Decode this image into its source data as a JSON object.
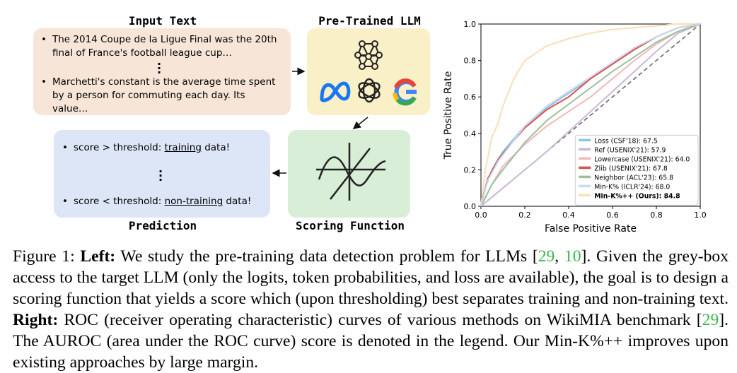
{
  "figure": {
    "input_text": {
      "heading": "Input Text",
      "bullet1_line1": "The 2014 Coupe de la Ligue Final was the 20th",
      "bullet1_line2": "final of France's football league cup…",
      "bullet2_line1": "Marchetti's constant is the average time spent",
      "bullet2_line2": "by a person for commuting each day. Its",
      "bullet2_line3": "value…"
    },
    "llm": {
      "heading": "Pre-Trained LLM"
    },
    "prediction": {
      "heading": "Prediction",
      "line1_prefix": "score > threshold: ",
      "line1_word": "training",
      "line1_suffix": " data!",
      "line2_prefix": "score < threshold: ",
      "line2_word": "non-training",
      "line2_suffix": " data!"
    },
    "scoring": {
      "heading": "Scoring Function"
    },
    "colors": {
      "input_box": "#f7e6d8",
      "llm_box": "#faf0c7",
      "prediction_box": "#dce6f7",
      "scoring_box": "#d8eed6"
    }
  },
  "chart_data": {
    "type": "line",
    "xlabel": "False Positive Rate",
    "ylabel": "True Positive Rate",
    "xlim": [
      0,
      1
    ],
    "ylim": [
      0,
      1
    ],
    "x_ticks": [
      "0.0",
      "0.2",
      "0.4",
      "0.6",
      "0.8",
      "1.0"
    ],
    "y_ticks": [
      "0.0",
      "0.2",
      "0.4",
      "0.6",
      "0.8",
      "1.0"
    ],
    "grid": false,
    "legend_position": "lower-right",
    "diagonal_reference": true,
    "series": [
      {
        "name": "Loss (CSF'18): 67.5",
        "color": "#8ec3e8",
        "auroc": 67.5,
        "x": [
          0,
          0.02,
          0.05,
          0.1,
          0.15,
          0.2,
          0.3,
          0.4,
          0.5,
          0.6,
          0.7,
          0.8,
          0.9,
          1.0
        ],
        "y": [
          0,
          0.1,
          0.2,
          0.3,
          0.37,
          0.44,
          0.54,
          0.62,
          0.7,
          0.78,
          0.86,
          0.93,
          0.98,
          1.0
        ]
      },
      {
        "name": "Ref (USENIX'21): 57.9",
        "color": "#cbb6d8",
        "auroc": 57.9,
        "x": [
          0,
          0.05,
          0.1,
          0.2,
          0.3,
          0.4,
          0.5,
          0.6,
          0.7,
          0.8,
          0.9,
          1.0
        ],
        "y": [
          0,
          0.05,
          0.1,
          0.2,
          0.3,
          0.41,
          0.52,
          0.63,
          0.74,
          0.85,
          0.95,
          1.0
        ]
      },
      {
        "name": "Lowercase (USENIX'21): 64.0",
        "color": "#f0b9b9",
        "auroc": 64.0,
        "x": [
          0,
          0.05,
          0.1,
          0.2,
          0.3,
          0.4,
          0.5,
          0.6,
          0.7,
          0.8,
          0.9,
          1.0
        ],
        "y": [
          0,
          0.12,
          0.22,
          0.34,
          0.44,
          0.52,
          0.6,
          0.7,
          0.8,
          0.89,
          0.96,
          1.0
        ]
      },
      {
        "name": "Zlib (USENIX'21): 67.8",
        "color": "#d9534f",
        "auroc": 67.8,
        "x": [
          0,
          0.03,
          0.08,
          0.15,
          0.2,
          0.3,
          0.4,
          0.5,
          0.6,
          0.7,
          0.8,
          0.9,
          1.0
        ],
        "y": [
          0,
          0.15,
          0.26,
          0.36,
          0.43,
          0.53,
          0.6,
          0.7,
          0.78,
          0.86,
          0.93,
          0.98,
          1.0
        ]
      },
      {
        "name": "Neighbor (ACL'23): 65.8",
        "color": "#9dbfa0",
        "auroc": 65.8,
        "x": [
          0,
          0.05,
          0.1,
          0.2,
          0.3,
          0.4,
          0.5,
          0.6,
          0.7,
          0.8,
          0.9,
          1.0
        ],
        "y": [
          0,
          0.12,
          0.2,
          0.35,
          0.47,
          0.56,
          0.65,
          0.74,
          0.82,
          0.9,
          0.96,
          1.0
        ]
      },
      {
        "name": "Min-K% (ICLR'24): 68.0",
        "color": "#c9daf0",
        "auroc": 68.0,
        "x": [
          0,
          0.03,
          0.08,
          0.15,
          0.2,
          0.3,
          0.4,
          0.5,
          0.6,
          0.7,
          0.8,
          0.9,
          1.0
        ],
        "y": [
          0,
          0.14,
          0.25,
          0.36,
          0.44,
          0.55,
          0.63,
          0.71,
          0.79,
          0.87,
          0.93,
          0.98,
          1.0
        ]
      },
      {
        "name": "Min-K%++ (Ours): 84.8",
        "color": "#fbe0bd",
        "auroc": 84.8,
        "bold": true,
        "x": [
          0,
          0.02,
          0.05,
          0.08,
          0.1,
          0.15,
          0.2,
          0.3,
          0.4,
          0.5,
          0.6,
          0.7,
          0.8,
          0.9,
          1.0
        ],
        "y": [
          0,
          0.2,
          0.38,
          0.46,
          0.55,
          0.7,
          0.8,
          0.88,
          0.92,
          0.95,
          0.97,
          0.98,
          0.99,
          1.0,
          1.0
        ]
      }
    ]
  },
  "caption": {
    "label": "Figure 1: ",
    "left_label": "Left:",
    "left_text_1": " We study the pre-training data detection problem for LLMs [",
    "ref_29": "29",
    "ref_sep": ", ",
    "ref_10": "10",
    "left_text_2": "]. Given the grey-box access to the target LLM (only the logits, token probabilities, and loss are available), the goal is to design a scoring function that yields a score which (upon thresholding) best separates training and non-training text. ",
    "right_label": "Right:",
    "right_text_1": " ROC (receiver operating characteristic) curves of various methods on WikiMIA benchmark [",
    "right_text_2": "]. The AUROC (area under the ROC curve) score is denoted in the legend. Our Min-K%++ improves upon existing approaches by large margin."
  }
}
